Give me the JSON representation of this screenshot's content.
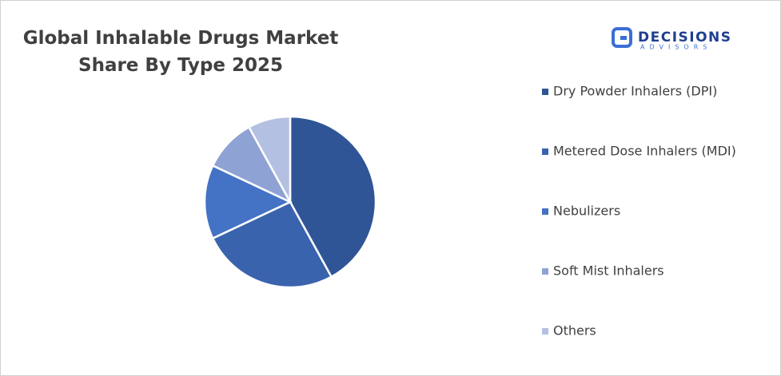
{
  "chart_data": {
    "type": "pie",
    "title": "Global Inhalable Drugs Market Share By Type 2025",
    "logo": {
      "name": "DECISIONS",
      "tagline": "ADVISORS"
    },
    "categories": [
      "Dry Powder Inhalers (DPI)",
      "Metered Dose Inhalers (MDI)",
      "Nebulizers",
      "Soft Mist Inhalers",
      "Others"
    ],
    "values": [
      42,
      26,
      14,
      10,
      8
    ],
    "colors": [
      "#2f5597",
      "#3a63ad",
      "#4472c4",
      "#8fa2d4",
      "#b4c0e2"
    ]
  }
}
